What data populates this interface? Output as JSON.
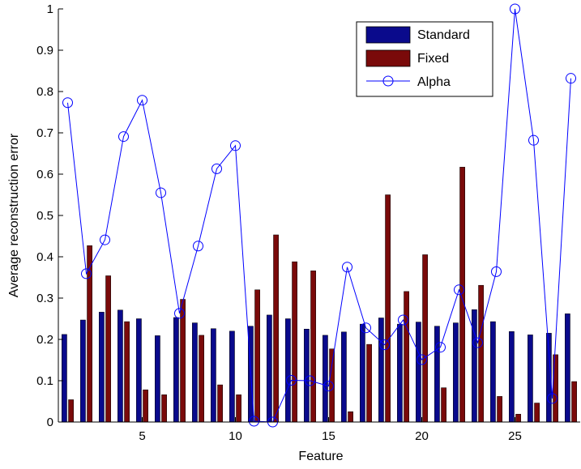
{
  "chart_data": {
    "type": "bar",
    "xlabel": "Feature",
    "ylabel": "Average reconstruction error",
    "xlim": [
      0.5,
      28.5
    ],
    "ylim": [
      0,
      1
    ],
    "xticks": [
      5,
      10,
      15,
      20,
      25
    ],
    "yticks": [
      0,
      0.1,
      0.2,
      0.3,
      0.4,
      0.5,
      0.6,
      0.7,
      0.8,
      0.9,
      1
    ],
    "ytick_labels": [
      "0",
      "0.1",
      "0.2",
      "0.3",
      "0.4",
      "0.5",
      "0.6",
      "0.7",
      "0.8",
      "0.9",
      "1"
    ],
    "grid": false,
    "legend_position": "top-right",
    "x": [
      1,
      2,
      3,
      4,
      5,
      6,
      7,
      8,
      9,
      10,
      11,
      12,
      13,
      14,
      15,
      16,
      17,
      18,
      19,
      20,
      21,
      22,
      23,
      24,
      25,
      26,
      27,
      28
    ],
    "series": [
      {
        "name": "Standard",
        "kind": "bar",
        "color": "#0a0a8c",
        "values": [
          0.212,
          0.247,
          0.266,
          0.271,
          0.25,
          0.209,
          0.253,
          0.24,
          0.226,
          0.22,
          0.232,
          0.259,
          0.25,
          0.225,
          0.21,
          0.218,
          0.237,
          0.252,
          0.237,
          0.242,
          0.232,
          0.24,
          0.272,
          0.243,
          0.219,
          0.211,
          0.215,
          0.262
        ]
      },
      {
        "name": "Fixed",
        "kind": "bar",
        "color": "#7a0a0a",
        "values": [
          0.054,
          0.427,
          0.354,
          0.243,
          0.078,
          0.066,
          0.297,
          0.21,
          0.09,
          0.066,
          0.32,
          0.453,
          0.388,
          0.366,
          0.177,
          0.025,
          0.188,
          0.55,
          0.316,
          0.405,
          0.083,
          0.617,
          0.331,
          0.062,
          0.019,
          0.046,
          0.163,
          0.098
        ]
      },
      {
        "name": "Alpha",
        "kind": "line",
        "marker": "circle",
        "color": "#0000ff",
        "values": [
          0.773,
          0.359,
          0.441,
          0.691,
          0.779,
          0.555,
          0.263,
          0.426,
          0.613,
          0.669,
          0.002,
          0.0,
          0.101,
          0.1,
          0.087,
          0.375,
          0.228,
          0.187,
          0.247,
          0.151,
          0.181,
          0.32,
          0.192,
          0.364,
          1.0,
          0.682,
          0.057,
          0.832
        ]
      }
    ]
  }
}
